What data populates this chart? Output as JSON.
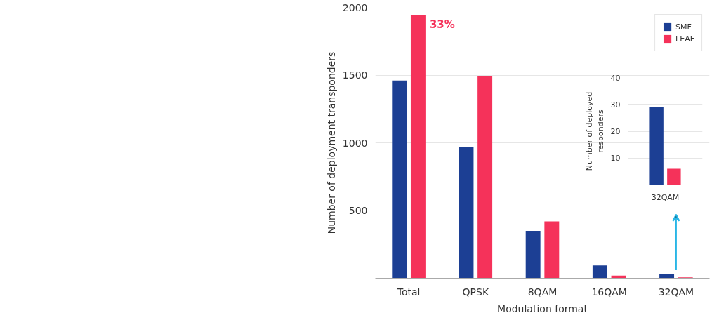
{
  "chart_data": [
    {
      "type": "bar",
      "categories": [
        "Total",
        "QPSK",
        "8QAM",
        "16QAM",
        "32QAM"
      ],
      "series": [
        {
          "name": "SMF",
          "color": "#1c3f94",
          "values": [
            1460,
            970,
            350,
            95,
            29
          ]
        },
        {
          "name": "LEAF",
          "color": "#f5325a",
          "values": [
            1940,
            1490,
            420,
            20,
            6
          ]
        }
      ],
      "xlabel": "Modulation format",
      "ylabel": "Number of deployment transponders",
      "ylim": [
        0,
        2000
      ],
      "yticks": [
        500,
        1000,
        1500,
        2000
      ],
      "grid": "y",
      "legend": "top right",
      "annotations": [
        {
          "text": "33%",
          "x": "Total",
          "y": 1940
        }
      ]
    },
    {
      "type": "bar",
      "categories": [
        "32QAM"
      ],
      "series": [
        {
          "color": "#1c3f94",
          "values": [
            29
          ]
        },
        {
          "color": "#f5325a",
          "values": [
            6
          ]
        }
      ],
      "ylabel": "Number of deployed responders",
      "ylim": [
        0,
        40
      ],
      "yticks": [
        10,
        20,
        30,
        40
      ],
      "grid": "y"
    }
  ]
}
